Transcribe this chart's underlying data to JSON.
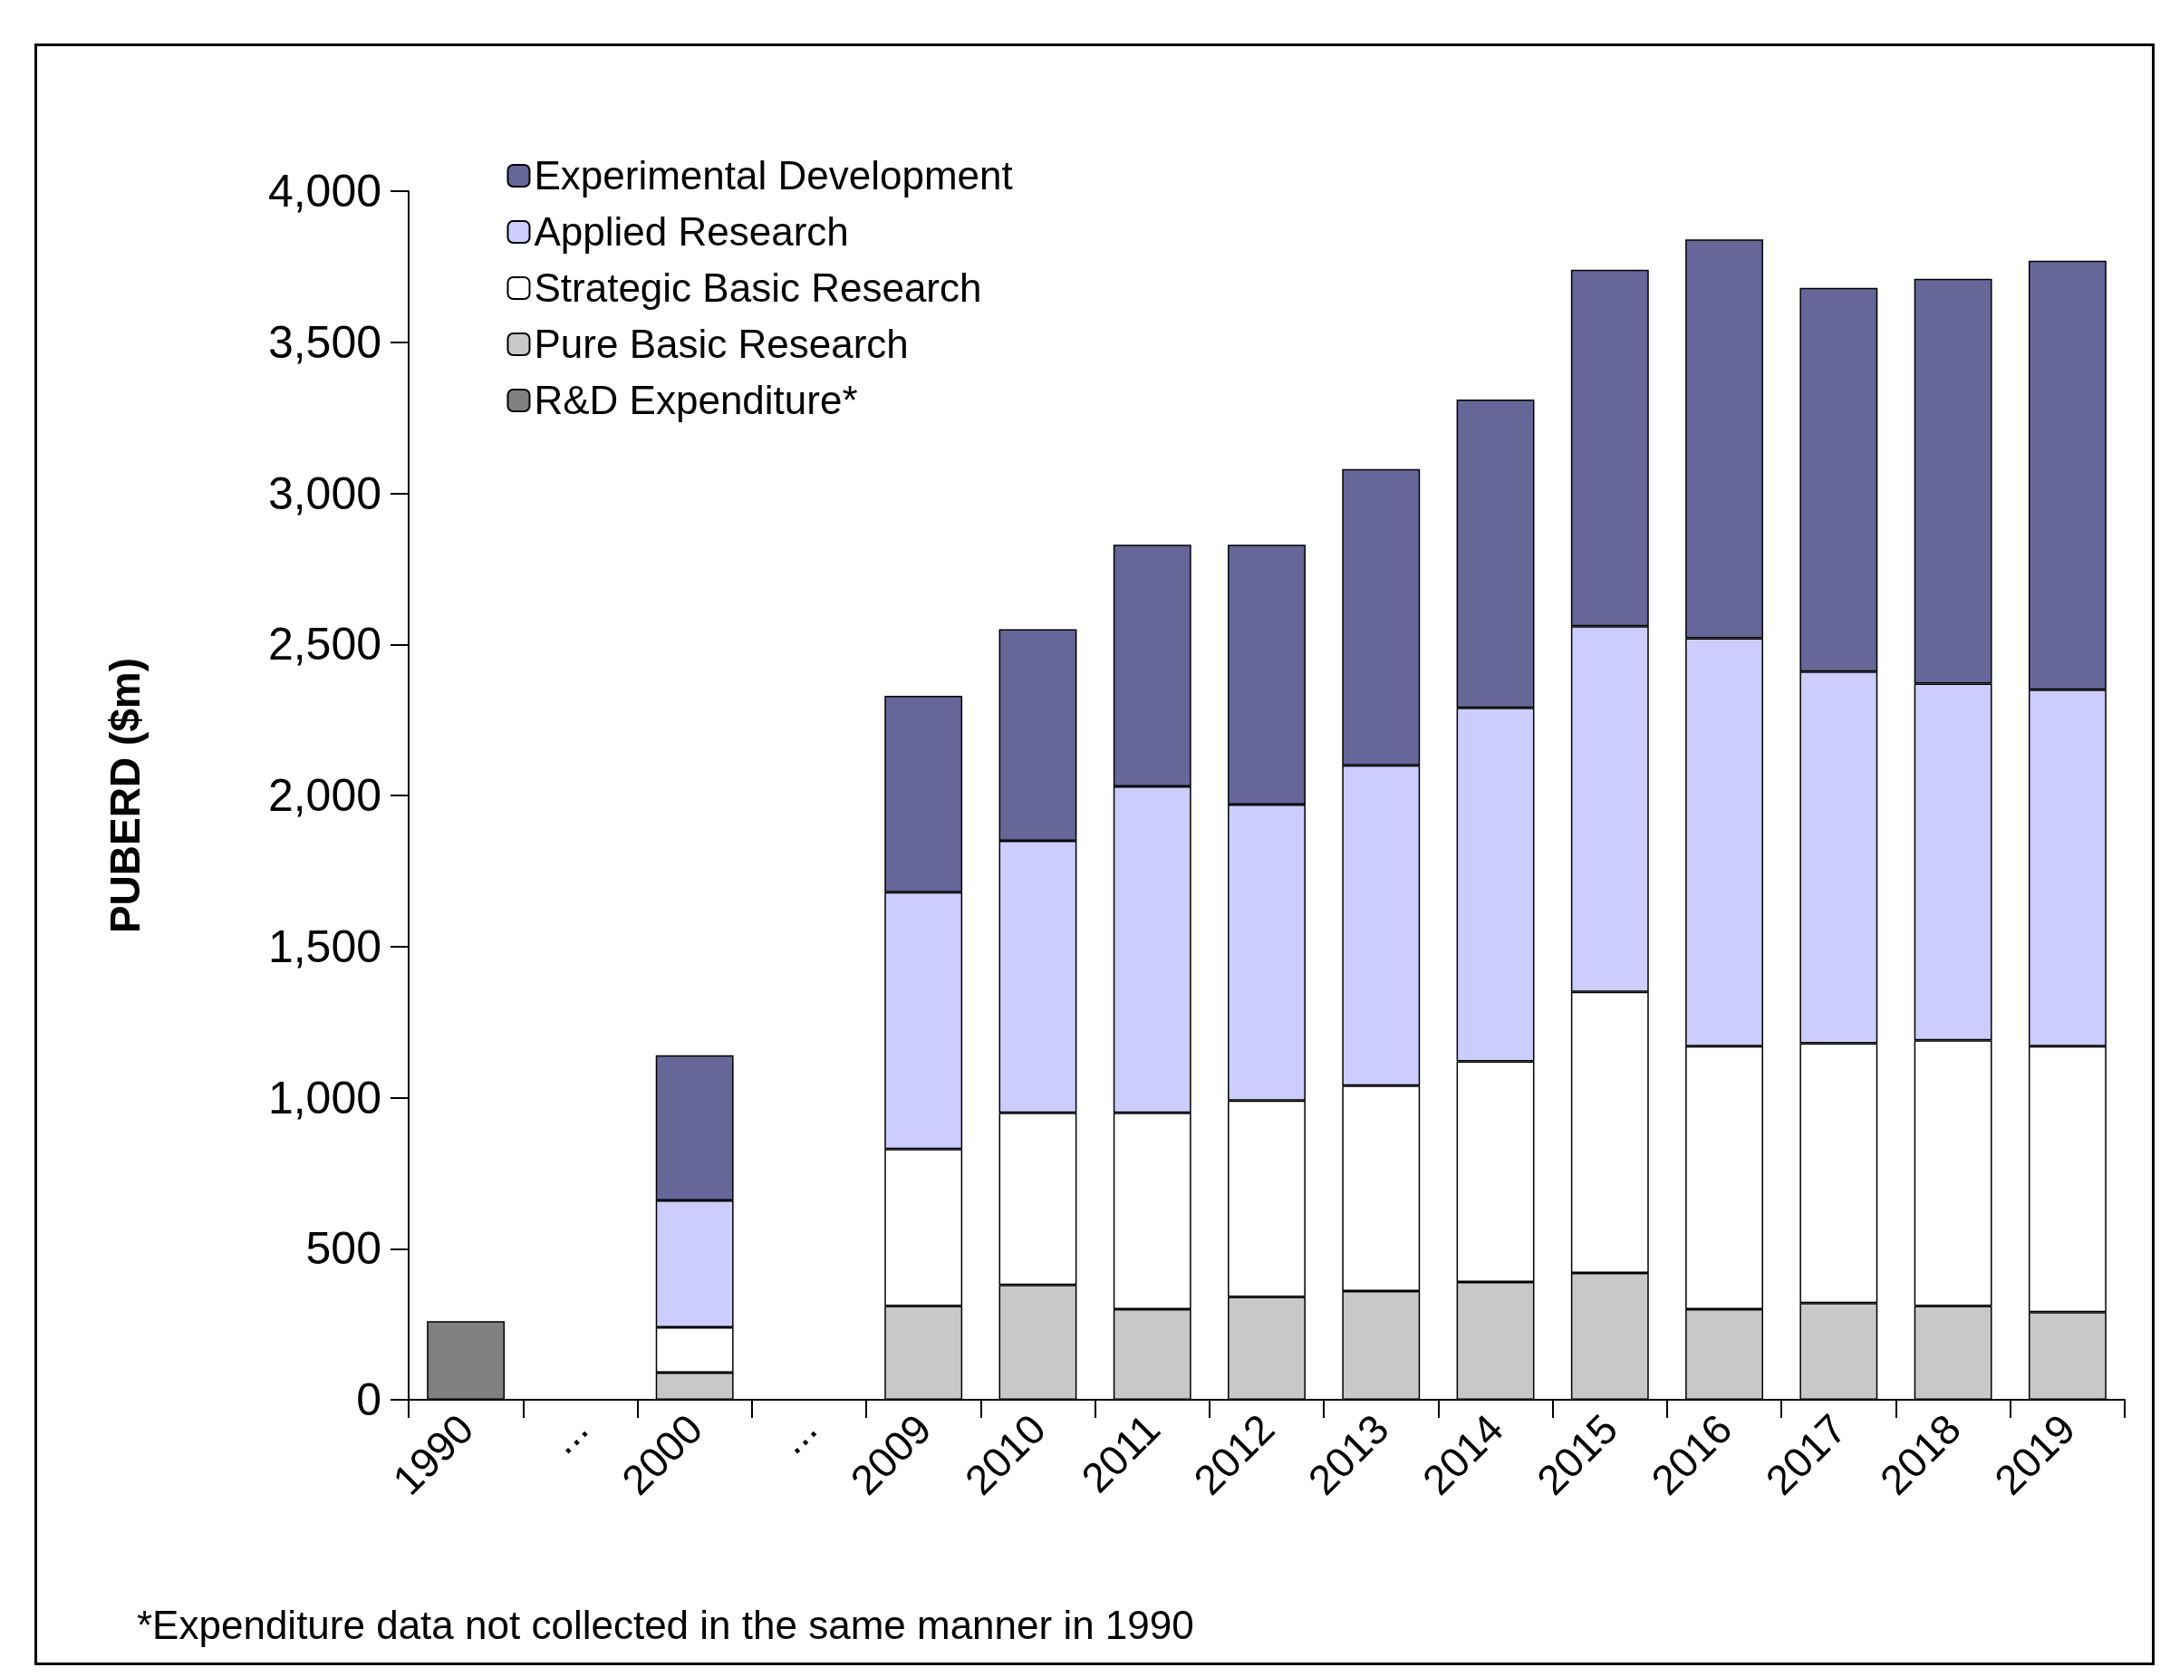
{
  "chart_data": {
    "type": "bar",
    "stacked": true,
    "ylabel": "PUBERD ($m)",
    "categories": [
      "1990",
      "...",
      "2000",
      "...",
      "2009",
      "2010",
      "2011",
      "2012",
      "2013",
      "2014",
      "2015",
      "2016",
      "2017",
      "2018",
      "2019"
    ],
    "series": [
      {
        "name": "R&D Expenditure*",
        "color": "#808080",
        "values": [
          260,
          null,
          null,
          null,
          null,
          null,
          null,
          null,
          null,
          null,
          null,
          null,
          null,
          null,
          null
        ]
      },
      {
        "name": "Pure Basic Research",
        "color": "#c8c8c8",
        "values": [
          null,
          null,
          90,
          null,
          310,
          380,
          300,
          340,
          360,
          390,
          420,
          300,
          320,
          310,
          290
        ]
      },
      {
        "name": "Strategic Basic Research",
        "color": "#ffffff",
        "values": [
          null,
          null,
          150,
          null,
          520,
          570,
          650,
          650,
          680,
          730,
          930,
          870,
          860,
          880,
          880
        ]
      },
      {
        "name": "Applied Research",
        "color": "#ccccff",
        "values": [
          null,
          null,
          420,
          null,
          850,
          900,
          1080,
          980,
          1060,
          1170,
          1210,
          1350,
          1230,
          1180,
          1180
        ]
      },
      {
        "name": "Experimental Development",
        "color": "#666699",
        "values": [
          null,
          null,
          480,
          null,
          650,
          700,
          800,
          860,
          980,
          1020,
          1180,
          1320,
          1270,
          1340,
          1420
        ]
      }
    ],
    "ylim": [
      0,
      4000
    ],
    "yticks": [
      0,
      500,
      {
        "value": 1000,
        "label": "1,000"
      },
      {
        "value": 1500,
        "label": "1,500"
      },
      {
        "value": 2000,
        "label": "2,000"
      },
      {
        "value": 2500,
        "label": "2,500"
      },
      {
        "value": 3000,
        "label": "3,000"
      },
      {
        "value": 3500,
        "label": "3,500"
      },
      {
        "value": 4000,
        "label": "4,000"
      }
    ],
    "grid": false,
    "legend": "top left",
    "annotations": [
      "*Expenditure data not collected in the same manner in 1990"
    ]
  }
}
